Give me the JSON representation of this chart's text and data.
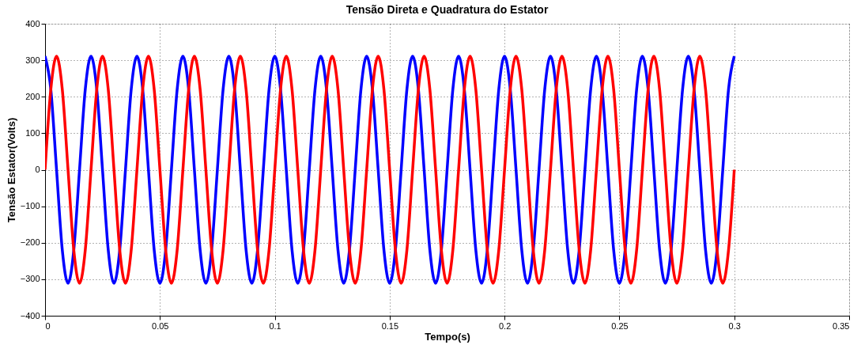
{
  "chart_data": {
    "type": "line",
    "title": "Tensão Direta e Quadratura do Estator",
    "xlabel": "Tempo(s)",
    "ylabel": "Tensão Estator(Volts)",
    "x": [
      0,
      0.0025,
      0.005,
      0.0075,
      0.01,
      0.0125,
      0.015,
      0.0175,
      0.02,
      0.0225,
      0.025,
      0.0275,
      0.03,
      0.0325,
      0.035,
      0.0375,
      0.04,
      0.0425,
      0.045,
      0.0475,
      0.05,
      0.0525,
      0.055,
      0.0575,
      0.06,
      0.0625,
      0.065,
      0.0675,
      0.07,
      0.0725,
      0.075,
      0.0775,
      0.08,
      0.0825,
      0.085,
      0.0875,
      0.09,
      0.0925,
      0.095,
      0.0975,
      0.1,
      0.1025,
      0.105,
      0.1075,
      0.11,
      0.1125,
      0.115,
      0.1175,
      0.12,
      0.1225,
      0.125,
      0.1275,
      0.13,
      0.1325,
      0.135,
      0.1375,
      0.14,
      0.1425,
      0.145,
      0.1475,
      0.15,
      0.1525,
      0.155,
      0.1575,
      0.16,
      0.1625,
      0.165,
      0.1675,
      0.17,
      0.1725,
      0.175,
      0.1775,
      0.18,
      0.1825,
      0.185,
      0.1875,
      0.19,
      0.1925,
      0.195,
      0.1975,
      0.2,
      0.2025,
      0.205,
      0.2075,
      0.21,
      0.2125,
      0.215,
      0.2175,
      0.22,
      0.2225,
      0.225,
      0.2275,
      0.23,
      0.2325,
      0.235,
      0.2375,
      0.24,
      0.2425,
      0.245,
      0.2475,
      0.25,
      0.2525,
      0.255,
      0.2575,
      0.26,
      0.2625,
      0.265,
      0.2675,
      0.27,
      0.2725,
      0.275,
      0.2775,
      0.28,
      0.2825,
      0.285,
      0.2875,
      0.29,
      0.2925,
      0.295,
      0.2975,
      0.3
    ],
    "series": [
      {
        "color": "#0000ff",
        "values": [
          311,
          220,
          0,
          -220,
          -311,
          -220,
          0,
          220,
          311,
          220,
          0,
          -220,
          -311,
          -220,
          0,
          220,
          311,
          220,
          0,
          -220,
          -311,
          -220,
          0,
          220,
          311,
          220,
          0,
          -220,
          -311,
          -220,
          0,
          220,
          311,
          220,
          0,
          -220,
          -311,
          -220,
          0,
          220,
          311,
          220,
          0,
          -220,
          -311,
          -220,
          0,
          220,
          311,
          220,
          0,
          -220,
          -311,
          -220,
          0,
          220,
          311,
          220,
          0,
          -220,
          -311,
          -220,
          0,
          220,
          311,
          220,
          0,
          -220,
          -311,
          -220,
          0,
          220,
          311,
          220,
          0,
          -220,
          -311,
          -220,
          0,
          220,
          311,
          220,
          0,
          -220,
          -311,
          -220,
          0,
          220,
          311,
          220,
          0,
          -220,
          -311,
          -220,
          0,
          220,
          311,
          220,
          0,
          -220,
          -311,
          -220,
          0,
          220,
          311,
          220,
          0,
          -220,
          -311,
          -220,
          0,
          220,
          311,
          220,
          0,
          -220,
          -311,
          -220,
          0,
          220,
          311
        ]
      },
      {
        "color": "#ff0000",
        "values": [
          0,
          220,
          311,
          220,
          0,
          -220,
          -311,
          -220,
          0,
          220,
          311,
          220,
          0,
          -220,
          -311,
          -220,
          0,
          220,
          311,
          220,
          0,
          -220,
          -311,
          -220,
          0,
          220,
          311,
          220,
          0,
          -220,
          -311,
          -220,
          0,
          220,
          311,
          220,
          0,
          -220,
          -311,
          -220,
          0,
          220,
          311,
          220,
          0,
          -220,
          -311,
          -220,
          0,
          220,
          311,
          220,
          0,
          -220,
          -311,
          -220,
          0,
          220,
          311,
          220,
          0,
          -220,
          -311,
          -220,
          0,
          220,
          311,
          220,
          0,
          -220,
          -311,
          -220,
          0,
          220,
          311,
          220,
          0,
          -220,
          -311,
          -220,
          0,
          220,
          311,
          220,
          0,
          -220,
          -311,
          -220,
          0,
          220,
          311,
          220,
          0,
          -220,
          -311,
          -220,
          0,
          220,
          311,
          220,
          0,
          -220,
          -311,
          -220,
          0,
          220,
          311,
          220,
          0,
          -220,
          -311,
          -220,
          0,
          220,
          311,
          220,
          0,
          -220,
          -311,
          -220,
          0
        ]
      }
    ],
    "xlim": [
      0,
      0.35
    ],
    "xticks": [
      0,
      0.05,
      0.1,
      0.15,
      0.2,
      0.25,
      0.3,
      0.35
    ],
    "ylim": [
      -400,
      400
    ],
    "yticks": [
      -400,
      -300,
      -200,
      -100,
      0,
      100,
      200,
      300,
      400
    ],
    "grid": true,
    "line_style": "solid"
  }
}
